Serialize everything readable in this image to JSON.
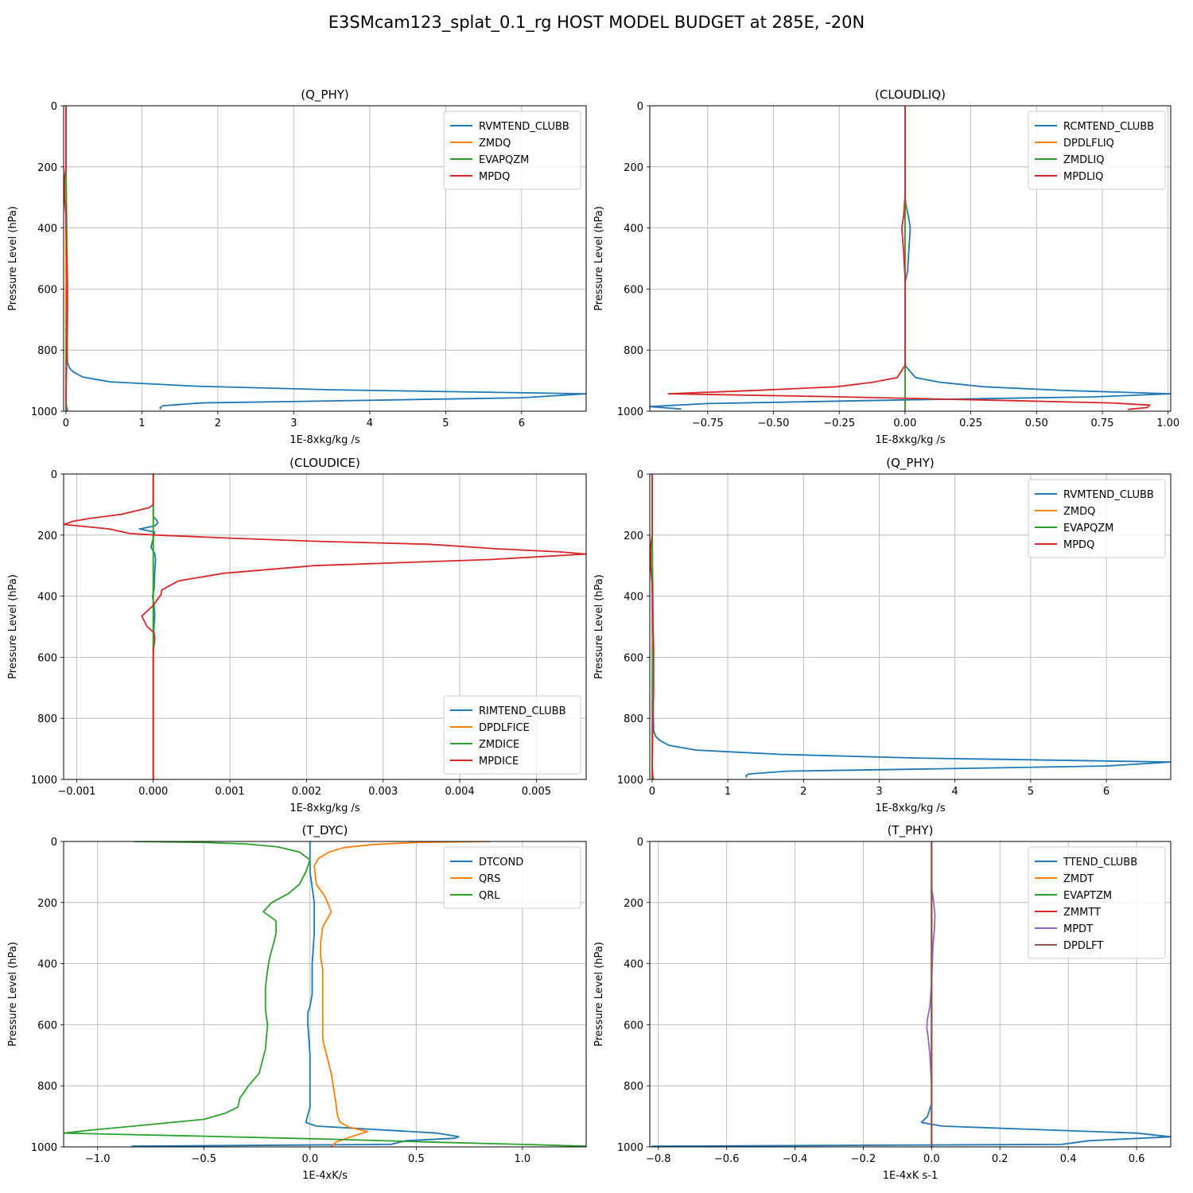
{
  "figure": {
    "title": "E3SMcam123_splat_0.1_rg HOST MODEL BUDGET at 285E, -20N"
  },
  "colors": {
    "c0": "#1f77b4",
    "c1": "#ff7f0e",
    "c2": "#2ca02c",
    "c3": "#d62728",
    "c4": "#9467bd",
    "c5": "#8c564b"
  },
  "chart_data": [
    {
      "type": "line",
      "title": "(Q_PHY)",
      "xlabel": "1E-8xkg/kg /s",
      "ylabel": "Pressure Level (hPa)",
      "xlim": [
        -0.03,
        6.85
      ],
      "ylim": [
        1000,
        0
      ],
      "grid": true,
      "xticks": [
        0,
        1,
        2,
        3,
        4,
        5,
        6
      ],
      "xticklabels": [
        "0",
        "1",
        "2",
        "3",
        "4",
        "5",
        "6"
      ],
      "yticks": [
        0,
        200,
        400,
        600,
        800,
        1000
      ],
      "yticklabels": [
        "0",
        "200",
        "400",
        "600",
        "800",
        "1000"
      ],
      "legend": "upper-right",
      "series": [
        {
          "name": "RVMTEND_CLUBB",
          "color": "#1f77b4",
          "x": [
            0,
            0,
            0,
            0.01,
            0.02,
            0.05,
            0.1,
            0.22,
            0.58,
            1.7,
            3.5,
            6.85,
            6.0,
            3.8,
            1.78,
            1.28,
            1.24,
            1.25
          ],
          "p": [
            0,
            200,
            500,
            700,
            840,
            860,
            872,
            888,
            904,
            918,
            930,
            943,
            956,
            965,
            973,
            982,
            988,
            994
          ]
        },
        {
          "name": "ZMDQ",
          "color": "#ff7f0e",
          "x": [
            0,
            0
          ],
          "p": [
            0,
            1000
          ]
        },
        {
          "name": "EVAPQZM",
          "color": "#2ca02c",
          "x": [
            0,
            0,
            0.005,
            0.01,
            0.015,
            0.01,
            0.005,
            0
          ],
          "p": [
            0,
            160,
            260,
            380,
            560,
            640,
            780,
            1000
          ]
        },
        {
          "name": "MPDQ",
          "color": "#d62728",
          "x": [
            0,
            0,
            -0.02,
            -0.02,
            0,
            0.01,
            0.02,
            0.02,
            0.01,
            0,
            0.01,
            0.02
          ],
          "p": [
            0,
            200,
            240,
            300,
            360,
            480,
            570,
            700,
            840,
            960,
            990,
            1000
          ]
        }
      ]
    },
    {
      "type": "line",
      "title": "(CLOUDLIQ)",
      "xlabel": "1E-8xkg/kg /s",
      "ylabel": "Pressure Level (hPa)",
      "xlim": [
        -0.97,
        1.01
      ],
      "ylim": [
        1000,
        0
      ],
      "grid": true,
      "xticks": [
        -0.75,
        -0.5,
        -0.25,
        0,
        0.25,
        0.5,
        0.75,
        1.0
      ],
      "xticklabels": [
        "−0.75",
        "−0.50",
        "−0.25",
        "0.00",
        "0.25",
        "0.50",
        "0.75",
        "1.00"
      ],
      "yticks": [
        0,
        200,
        400,
        600,
        800,
        1000
      ],
      "yticklabels": [
        "0",
        "200",
        "400",
        "600",
        "800",
        "1000"
      ],
      "legend": "upper-right",
      "series": [
        {
          "name": "RCMTEND_CLUBB",
          "color": "#1f77b4",
          "x": [
            0,
            0,
            0.005,
            0.015,
            0.02,
            0.015,
            0.01,
            0,
            0,
            0,
            0.02,
            0.04,
            0.13,
            0.3,
            0.6,
            1.01,
            0.72,
            0,
            -0.75,
            -0.97,
            -0.85
          ],
          "p": [
            0,
            300,
            330,
            370,
            400,
            470,
            540,
            580,
            800,
            850,
            870,
            890,
            905,
            920,
            932,
            943,
            953,
            963,
            975,
            985,
            993
          ]
        },
        {
          "name": "DPDLFLIQ",
          "color": "#ff7f0e",
          "x": [
            0,
            0
          ],
          "p": [
            0,
            1000
          ]
        },
        {
          "name": "ZMDLIQ",
          "color": "#2ca02c",
          "x": [
            0,
            0,
            0,
            0
          ],
          "p": [
            0,
            850,
            900,
            1000
          ]
        },
        {
          "name": "MPDLIQ",
          "color": "#d62728",
          "x": [
            0,
            0,
            -0.005,
            -0.012,
            -0.005,
            0,
            0,
            -0.03,
            -0.12,
            -0.26,
            -0.6,
            -0.9,
            -0.3,
            0.28,
            0.78,
            0.93,
            0.92,
            0.85,
            0.85
          ],
          "p": [
            0,
            300,
            360,
            400,
            480,
            560,
            850,
            890,
            905,
            920,
            933,
            943,
            952,
            963,
            973,
            980,
            988,
            994,
            997
          ]
        }
      ]
    },
    {
      "type": "line",
      "title": "(CLOUDICE)",
      "xlabel": "1E-8xkg/kg /s",
      "ylabel": "Pressure Level (hPa)",
      "xlim": [
        -0.00117,
        0.00565
      ],
      "ylim": [
        1000,
        0
      ],
      "grid": true,
      "xticks": [
        -0.001,
        0,
        0.001,
        0.002,
        0.003,
        0.004,
        0.005
      ],
      "xticklabels": [
        "−0.001",
        "0.000",
        "0.001",
        "0.002",
        "0.003",
        "0.004",
        "0.005"
      ],
      "yticks": [
        0,
        200,
        400,
        600,
        800,
        1000
      ],
      "yticklabels": [
        "0",
        "200",
        "400",
        "600",
        "800",
        "1000"
      ],
      "legend": "lower-right",
      "series": [
        {
          "name": "RIMTEND_CLUBB",
          "color": "#1f77b4",
          "x": [
            0,
            0,
            4e-05,
            6e-05,
            2e-05,
            -0.00018,
            2e-05,
            -3e-05,
            2e-05,
            3e-05,
            2e-05,
            1e-05,
            -1e-05,
            1e-05,
            2e-05,
            1e-05,
            0,
            0
          ],
          "p": [
            0,
            140,
            150,
            160,
            170,
            180,
            190,
            240,
            260,
            280,
            320,
            380,
            400,
            430,
            460,
            500,
            560,
            1000
          ]
        },
        {
          "name": "DPDLFICE",
          "color": "#ff7f0e",
          "x": [
            0,
            0
          ],
          "p": [
            0,
            1000
          ]
        },
        {
          "name": "ZMDICE",
          "color": "#2ca02c",
          "x": [
            0,
            0
          ],
          "p": [
            0,
            1000
          ]
        },
        {
          "name": "MPDICE",
          "color": "#d62728",
          "x": [
            0,
            0,
            -5e-05,
            -0.00042,
            -0.00085,
            -0.00105,
            -0.00117,
            -0.00057,
            -0.0003,
            5e-05,
            0.001,
            0.0021,
            0.0036,
            0.0045,
            0.0053,
            0.00565,
            0.0044,
            0.0021,
            0.00092,
            0.00033,
            0.00018,
            0.00011,
            0.0001,
            0.0,
            -0.00015,
            -8e-05,
            1e-05,
            2e-05,
            1e-05,
            0,
            0
          ],
          "p": [
            0,
            100,
            110,
            132,
            146,
            155,
            165,
            180,
            195,
            200,
            210,
            220,
            230,
            245,
            255,
            262,
            280,
            300,
            325,
            350,
            370,
            380,
            395,
            430,
            465,
            500,
            520,
            540,
            560,
            580,
            1000
          ]
        }
      ]
    },
    {
      "type": "line",
      "title": "(Q_PHY)",
      "xlabel": "1E-8xkg/kg /s",
      "ylabel": "Pressure Level (hPa)",
      "xlim": [
        -0.03,
        6.85
      ],
      "ylim": [
        1000,
        0
      ],
      "grid": true,
      "xticks": [
        0,
        1,
        2,
        3,
        4,
        5,
        6
      ],
      "xticklabels": [
        "0",
        "1",
        "2",
        "3",
        "4",
        "5",
        "6"
      ],
      "yticks": [
        0,
        200,
        400,
        600,
        800,
        1000
      ],
      "yticklabels": [
        "0",
        "200",
        "400",
        "600",
        "800",
        "1000"
      ],
      "legend": "upper-right",
      "series": [
        {
          "name": "RVMTEND_CLUBB",
          "color": "#1f77b4",
          "x": [
            0,
            0,
            0,
            0.01,
            0.02,
            0.05,
            0.1,
            0.22,
            0.58,
            1.7,
            3.5,
            6.85,
            6.0,
            3.8,
            1.78,
            1.28,
            1.24,
            1.25
          ],
          "p": [
            0,
            200,
            500,
            700,
            840,
            860,
            872,
            888,
            904,
            918,
            930,
            943,
            956,
            965,
            973,
            982,
            988,
            994
          ]
        },
        {
          "name": "ZMDQ",
          "color": "#ff7f0e",
          "x": [
            0,
            0
          ],
          "p": [
            0,
            1000
          ]
        },
        {
          "name": "EVAPQZM",
          "color": "#2ca02c",
          "x": [
            0,
            0,
            0.005,
            0.01,
            0.015,
            0.01,
            0.005,
            0
          ],
          "p": [
            0,
            160,
            260,
            380,
            560,
            640,
            780,
            1000
          ]
        },
        {
          "name": "MPDQ",
          "color": "#d62728",
          "x": [
            0,
            0,
            -0.02,
            -0.02,
            0,
            0.01,
            0.02,
            0.02,
            0.01,
            0,
            0.01,
            0.02
          ],
          "p": [
            0,
            200,
            240,
            300,
            360,
            480,
            570,
            700,
            840,
            960,
            990,
            1000
          ]
        }
      ]
    },
    {
      "type": "line",
      "title": "(T_DYC)",
      "xlabel": "1E-4xK/s",
      "ylabel": "Pressure Level (hPa)",
      "xlim": [
        -1.16,
        1.3
      ],
      "ylim": [
        1000,
        0
      ],
      "grid": true,
      "xticks": [
        -1.0,
        -0.5,
        0,
        0.5,
        1.0
      ],
      "xticklabels": [
        "−1.0",
        "−0.5",
        "0.0",
        "0.5",
        "1.0"
      ],
      "yticks": [
        0,
        200,
        400,
        600,
        800,
        1000
      ],
      "yticklabels": [
        "0",
        "200",
        "400",
        "600",
        "800",
        "1000"
      ],
      "legend": "upper-right",
      "series": [
        {
          "name": "DTCOND",
          "color": "#1f77b4",
          "x": [
            0,
            0,
            0.01,
            0.02,
            0.02,
            0.01,
            0.01,
            0,
            -0.01,
            -0.01,
            0,
            0,
            -0.01,
            -0.02,
            0.03,
            0.6,
            0.7,
            0.68,
            0.45,
            0.38,
            -0.84
          ],
          "p": [
            0,
            100,
            150,
            200,
            300,
            400,
            500,
            540,
            560,
            600,
            700,
            870,
            895,
            920,
            932,
            955,
            967,
            972,
            980,
            992,
            998
          ]
        },
        {
          "name": "QRS",
          "color": "#ff7f0e",
          "x": [
            0.85,
            0.5,
            0.3,
            0.16,
            0.09,
            0.04,
            0.02,
            0.03,
            0.07,
            0.1,
            0.06,
            0.05,
            0.05,
            0.06,
            0.06,
            0.06,
            0.1,
            0.12,
            0.13,
            0.14,
            0.18,
            0.27,
            0.2,
            0.12,
            0.1
          ],
          "p": [
            0,
            3,
            10,
            20,
            35,
            55,
            80,
            140,
            180,
            230,
            280,
            330,
            380,
            420,
            500,
            650,
            760,
            850,
            900,
            918,
            935,
            950,
            965,
            985,
            1000
          ]
        },
        {
          "name": "QRL",
          "color": "#2ca02c",
          "x": [
            -0.83,
            -0.5,
            -0.3,
            -0.15,
            -0.05,
            0,
            -0.02,
            -0.05,
            -0.1,
            -0.18,
            -0.22,
            -0.16,
            -0.16,
            -0.17,
            -0.19,
            -0.2,
            -0.21,
            -0.21,
            -0.2,
            -0.21,
            -0.24,
            -0.29,
            -0.33,
            -0.34,
            -0.4,
            -0.5,
            -0.8,
            -1.03,
            -1.16,
            -0.5,
            0.1,
            0.6,
            1.0,
            1.3
          ],
          "p": [
            0,
            3,
            8,
            18,
            35,
            60,
            100,
            140,
            170,
            200,
            230,
            260,
            300,
            330,
            380,
            420,
            480,
            550,
            600,
            680,
            760,
            800,
            840,
            870,
            890,
            910,
            930,
            945,
            955,
            965,
            975,
            985,
            992,
            998
          ]
        }
      ]
    },
    {
      "type": "line",
      "title": "(T_PHY)",
      "xlabel": "1E-4xK s-1",
      "ylabel": "Pressure Level (hPa)",
      "xlim": [
        -0.825,
        0.7
      ],
      "ylim": [
        1000,
        0
      ],
      "grid": true,
      "xticks": [
        -0.8,
        -0.6,
        -0.4,
        -0.2,
        0,
        0.2,
        0.4,
        0.6
      ],
      "xticklabels": [
        "−0.8",
        "−0.6",
        "−0.4",
        "−0.2",
        "0.0",
        "0.2",
        "0.4",
        "0.6"
      ],
      "yticks": [
        0,
        200,
        400,
        600,
        800,
        1000
      ],
      "yticklabels": [
        "0",
        "200",
        "400",
        "600",
        "800",
        "1000"
      ],
      "legend": "upper-right",
      "series": [
        {
          "name": "TTEND_CLUBB",
          "color": "#1f77b4",
          "x": [
            0,
            0,
            0,
            0,
            -0.005,
            -0.012,
            -0.03,
            0.03,
            0.35,
            0.6,
            0.7,
            0.46,
            0.38,
            -0.82
          ],
          "p": [
            0,
            500,
            700,
            860,
            875,
            900,
            920,
            932,
            945,
            955,
            967,
            980,
            992,
            998
          ]
        },
        {
          "name": "ZMDT",
          "color": "#ff7f0e",
          "x": [
            0,
            0
          ],
          "p": [
            0,
            1000
          ]
        },
        {
          "name": "EVAPTZM",
          "color": "#2ca02c",
          "x": [
            0,
            0
          ],
          "p": [
            0,
            1000
          ]
        },
        {
          "name": "ZMMTT",
          "color": "#d62728",
          "x": [
            0,
            0
          ],
          "p": [
            0,
            1000
          ]
        },
        {
          "name": "MPDT",
          "color": "#9467bd",
          "x": [
            0,
            0,
            0.005,
            0.01,
            0.008,
            0.004,
            0.002,
            0,
            -0.005,
            -0.012,
            -0.014,
            -0.01,
            -0.005,
            0,
            0,
            0
          ],
          "p": [
            0,
            150,
            190,
            240,
            290,
            340,
            400,
            460,
            540,
            580,
            610,
            640,
            700,
            800,
            900,
            1000
          ]
        },
        {
          "name": "DPDLFT",
          "color": "#8c564b",
          "x": [
            0,
            0
          ],
          "p": [
            0,
            1000
          ]
        }
      ]
    }
  ]
}
